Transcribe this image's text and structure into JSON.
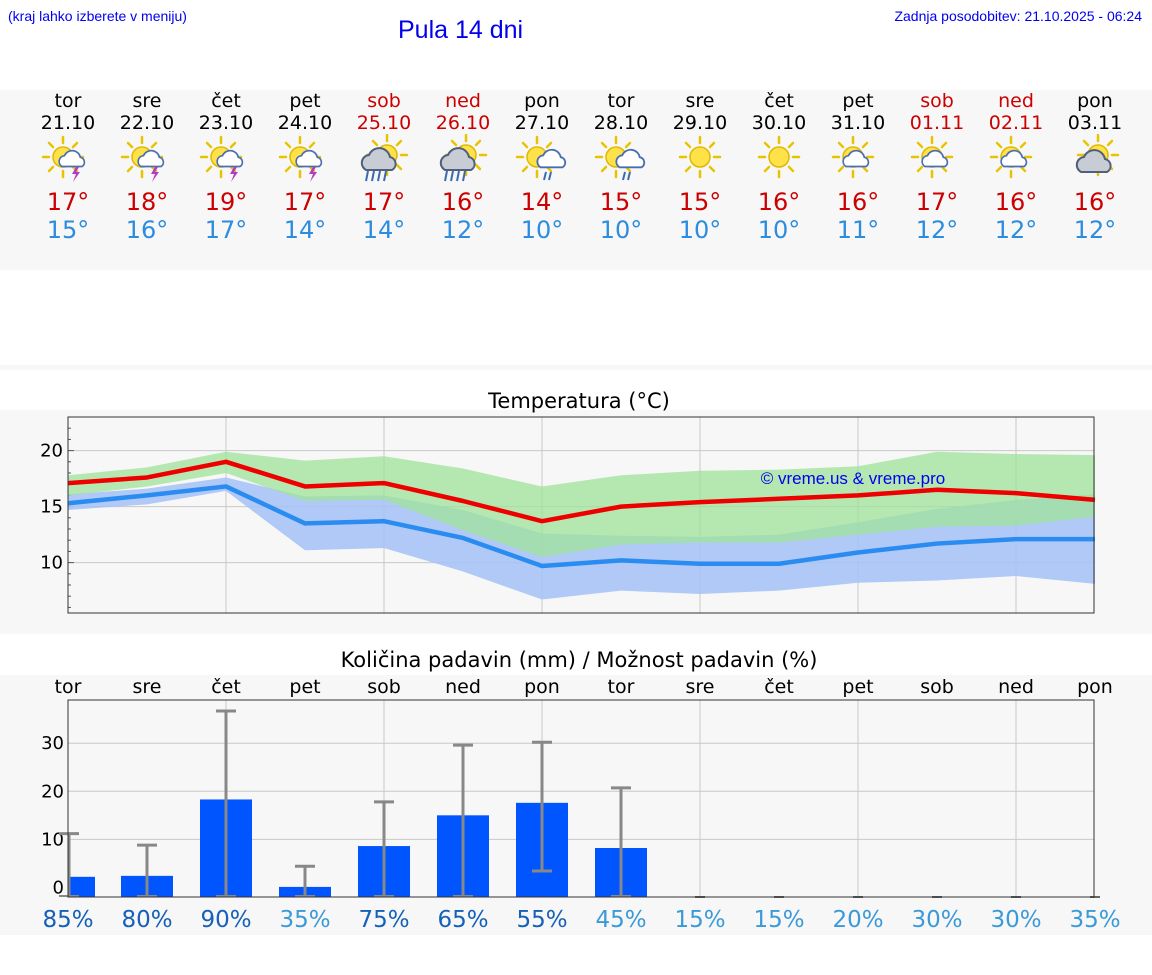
{
  "header": {
    "hint": "(kraj lahko izberete v meniju)",
    "title": "Pula 14 dni",
    "updated": "Zadnja posodobitev: 21.10.2025 - 06:24"
  },
  "days": [
    {
      "name": "tor",
      "date": "21.10",
      "weekend": false,
      "icon": "sun-cloud-thunder-icon",
      "tmax": "17°",
      "tmin": "15°"
    },
    {
      "name": "sre",
      "date": "22.10",
      "weekend": false,
      "icon": "sun-cloud-thunder-icon",
      "tmax": "18°",
      "tmin": "16°"
    },
    {
      "name": "čet",
      "date": "23.10",
      "weekend": false,
      "icon": "sun-cloud-thunder-icon",
      "tmax": "19°",
      "tmin": "17°"
    },
    {
      "name": "pet",
      "date": "24.10",
      "weekend": false,
      "icon": "sun-cloud-thunder-icon",
      "tmax": "17°",
      "tmin": "14°"
    },
    {
      "name": "sob",
      "date": "25.10",
      "weekend": true,
      "icon": "sun-cloud-heavy-rain-icon",
      "tmax": "17°",
      "tmin": "14°"
    },
    {
      "name": "ned",
      "date": "26.10",
      "weekend": true,
      "icon": "sun-cloud-heavy-rain-icon",
      "tmax": "16°",
      "tmin": "12°"
    },
    {
      "name": "pon",
      "date": "27.10",
      "weekend": false,
      "icon": "sun-cloud-light-rain-icon",
      "tmax": "14°",
      "tmin": "10°"
    },
    {
      "name": "tor",
      "date": "28.10",
      "weekend": false,
      "icon": "sun-cloud-light-rain-icon",
      "tmax": "15°",
      "tmin": "10°"
    },
    {
      "name": "sre",
      "date": "29.10",
      "weekend": false,
      "icon": "sun-icon",
      "tmax": "15°",
      "tmin": "10°"
    },
    {
      "name": "čet",
      "date": "30.10",
      "weekend": false,
      "icon": "sun-icon",
      "tmax": "16°",
      "tmin": "10°"
    },
    {
      "name": "pet",
      "date": "31.10",
      "weekend": false,
      "icon": "sun-small-cloud-icon",
      "tmax": "16°",
      "tmin": "11°"
    },
    {
      "name": "sob",
      "date": "01.11",
      "weekend": true,
      "icon": "sun-small-cloud-icon",
      "tmax": "17°",
      "tmin": "12°"
    },
    {
      "name": "ned",
      "date": "02.11",
      "weekend": true,
      "icon": "sun-small-cloud-icon",
      "tmax": "16°",
      "tmin": "12°"
    },
    {
      "name": "pon",
      "date": "03.11",
      "weekend": false,
      "icon": "sun-cloud-icon",
      "tmax": "16°",
      "tmin": "12°"
    }
  ],
  "colors": {
    "max_line": "#ee0000",
    "min_line": "#2a8cf0",
    "max_band": "#9fe39a",
    "min_band": "#a9c3f5",
    "bar": "#0055ff",
    "error": "#888888",
    "pct_high": "#1560b8",
    "pct_low": "#3a9ad8"
  },
  "chart_data": [
    {
      "type": "line",
      "title": "Temperatura (°C)",
      "ylim": [
        5.5,
        23
      ],
      "yticks": [
        10,
        15,
        20
      ],
      "categories": [
        "21.10",
        "22.10",
        "23.10",
        "24.10",
        "25.10",
        "26.10",
        "27.10",
        "28.10",
        "29.10",
        "30.10",
        "31.10",
        "01.11",
        "02.11",
        "03.11"
      ],
      "series": [
        {
          "name": "max",
          "values": [
            17.1,
            17.6,
            19.0,
            16.8,
            17.1,
            15.5,
            13.7,
            15.0,
            15.4,
            15.7,
            16.0,
            16.5,
            16.2,
            15.6
          ]
        },
        {
          "name": "min",
          "values": [
            15.3,
            16.0,
            16.8,
            13.5,
            13.7,
            12.2,
            9.7,
            10.2,
            9.9,
            9.9,
            10.9,
            11.7,
            12.1,
            12.1
          ]
        }
      ],
      "bands": [
        {
          "name": "max_range",
          "lower": [
            16.0,
            16.8,
            18.0,
            15.5,
            15.6,
            12.9,
            10.5,
            11.6,
            11.8,
            11.8,
            12.5,
            13.2,
            13.3,
            14.1
          ],
          "upper": [
            17.8,
            18.5,
            19.9,
            19.1,
            19.5,
            18.4,
            16.8,
            17.8,
            18.2,
            18.3,
            18.6,
            19.9,
            19.7,
            19.6
          ]
        },
        {
          "name": "min_range",
          "lower": [
            14.7,
            15.2,
            16.4,
            11.1,
            11.3,
            9.2,
            6.7,
            7.5,
            7.2,
            7.5,
            8.2,
            8.4,
            8.8,
            8.1
          ],
          "upper": [
            16.1,
            16.6,
            17.6,
            15.9,
            16.0,
            14.7,
            12.6,
            12.4,
            12.3,
            12.5,
            13.6,
            14.8,
            15.6,
            16.1
          ]
        }
      ],
      "watermark": "© vreme.us & vreme.pro"
    },
    {
      "type": "bar",
      "title": "Količina padavin (mm) / Možnost padavin (%)",
      "ylim": [
        -2,
        39
      ],
      "yticks": [
        0,
        10,
        20,
        30
      ],
      "categories": [
        "tor",
        "sre",
        "čet",
        "pet",
        "sob",
        "ned",
        "pon",
        "tor",
        "sre",
        "čet",
        "pet",
        "sob",
        "ned",
        "pon"
      ],
      "values": [
        2.2,
        2.4,
        18.3,
        0.1,
        8.6,
        15.0,
        17.6,
        8.2,
        0,
        0,
        0,
        0,
        0,
        0
      ],
      "error_low": [
        0,
        0,
        0,
        0,
        0,
        0,
        3.4,
        0,
        0,
        0,
        0,
        0,
        0,
        0
      ],
      "error_high": [
        11.2,
        8.8,
        36.7,
        4.4,
        17.8,
        29.6,
        30.2,
        20.7,
        0,
        0,
        0,
        0,
        0,
        0
      ],
      "probability": [
        "85%",
        "80%",
        "90%",
        "35%",
        "75%",
        "65%",
        "55%",
        "45%",
        "15%",
        "15%",
        "20%",
        "30%",
        "30%",
        "35%"
      ]
    }
  ]
}
